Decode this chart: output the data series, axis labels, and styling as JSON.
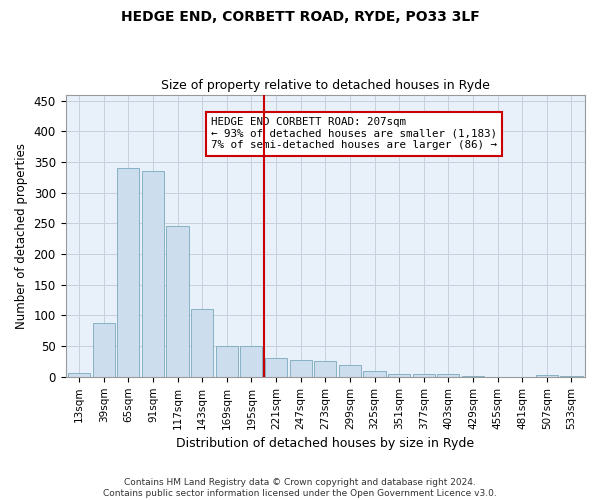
{
  "title": "HEDGE END, CORBETT ROAD, RYDE, PO33 3LF",
  "subtitle": "Size of property relative to detached houses in Ryde",
  "xlabel": "Distribution of detached houses by size in Ryde",
  "ylabel": "Number of detached properties",
  "bar_color": "#ccdded",
  "bar_edge_color": "#7aaabb",
  "background_color": "#e8f0fa",
  "grid_color": "#c8d0e0",
  "annotation_line_color": "#cc0000",
  "annotation_box_color": "#cc0000",
  "annotation_line1": "HEDGE END CORBETT ROAD: 207sqm",
  "annotation_line2": "← 93% of detached houses are smaller (1,183)",
  "annotation_line3": "7% of semi-detached houses are larger (86) →",
  "categories": [
    "13sqm",
    "39sqm",
    "65sqm",
    "91sqm",
    "117sqm",
    "143sqm",
    "169sqm",
    "195sqm",
    "221sqm",
    "247sqm",
    "273sqm",
    "299sqm",
    "325sqm",
    "351sqm",
    "377sqm",
    "403sqm",
    "429sqm",
    "455sqm",
    "481sqm",
    "507sqm",
    "533sqm"
  ],
  "values": [
    6,
    88,
    340,
    335,
    245,
    110,
    50,
    50,
    30,
    27,
    25,
    20,
    10,
    5,
    5,
    4,
    2,
    0,
    0,
    3,
    2
  ],
  "ylim": [
    0,
    460
  ],
  "yticks": [
    0,
    50,
    100,
    150,
    200,
    250,
    300,
    350,
    400,
    450
  ],
  "footnote_line1": "Contains HM Land Registry data © Crown copyright and database right 2024.",
  "footnote_line2": "Contains public sector information licensed under the Open Government Licence v3.0."
}
